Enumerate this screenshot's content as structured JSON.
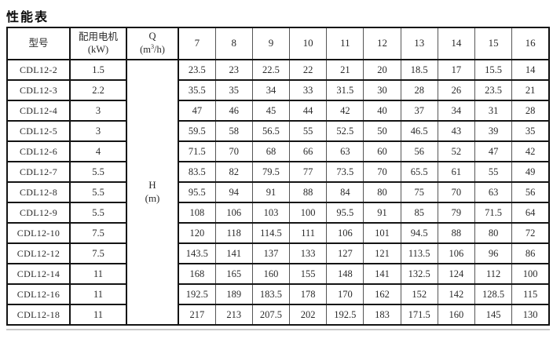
{
  "page": {
    "title": "性能表"
  },
  "table": {
    "header": {
      "model": "型号",
      "motor_line1": "配用电机",
      "motor_line2": "(kW)",
      "q_symbol": "Q",
      "q_unit_prefix": "(m",
      "q_unit_sup": "3",
      "q_unit_suffix": "/h)",
      "flow_columns": [
        "7",
        "8",
        "9",
        "10",
        "11",
        "12",
        "13",
        "14",
        "15",
        "16"
      ]
    },
    "h_cell_line1": "H",
    "h_cell_line2": "(m)",
    "rows": [
      {
        "model": "CDL12-2",
        "power": "1.5",
        "values": [
          "23.5",
          "23",
          "22.5",
          "22",
          "21",
          "20",
          "18.5",
          "17",
          "15.5",
          "14"
        ]
      },
      {
        "model": "CDL12-3",
        "power": "2.2",
        "values": [
          "35.5",
          "35",
          "34",
          "33",
          "31.5",
          "30",
          "28",
          "26",
          "23.5",
          "21"
        ]
      },
      {
        "model": "CDL12-4",
        "power": "3",
        "values": [
          "47",
          "46",
          "45",
          "44",
          "42",
          "40",
          "37",
          "34",
          "31",
          "28"
        ]
      },
      {
        "model": "CDL12-5",
        "power": "3",
        "values": [
          "59.5",
          "58",
          "56.5",
          "55",
          "52.5",
          "50",
          "46.5",
          "43",
          "39",
          "35"
        ]
      },
      {
        "model": "CDL12-6",
        "power": "4",
        "values": [
          "71.5",
          "70",
          "68",
          "66",
          "63",
          "60",
          "56",
          "52",
          "47",
          "42"
        ]
      },
      {
        "model": "CDL12-7",
        "power": "5.5",
        "values": [
          "83.5",
          "82",
          "79.5",
          "77",
          "73.5",
          "70",
          "65.5",
          "61",
          "55",
          "49"
        ]
      },
      {
        "model": "CDL12-8",
        "power": "5.5",
        "values": [
          "95.5",
          "94",
          "91",
          "88",
          "84",
          "80",
          "75",
          "70",
          "63",
          "56"
        ]
      },
      {
        "model": "CDL12-9",
        "power": "5.5",
        "values": [
          "108",
          "106",
          "103",
          "100",
          "95.5",
          "91",
          "85",
          "79",
          "71.5",
          "64"
        ]
      },
      {
        "model": "CDL12-10",
        "power": "7.5",
        "values": [
          "120",
          "118",
          "114.5",
          "111",
          "106",
          "101",
          "94.5",
          "88",
          "80",
          "72"
        ]
      },
      {
        "model": "CDL12-12",
        "power": "7.5",
        "values": [
          "143.5",
          "141",
          "137",
          "133",
          "127",
          "121",
          "113.5",
          "106",
          "96",
          "86"
        ]
      },
      {
        "model": "CDL12-14",
        "power": "11",
        "values": [
          "168",
          "165",
          "160",
          "155",
          "148",
          "141",
          "132.5",
          "124",
          "112",
          "100"
        ]
      },
      {
        "model": "CDL12-16",
        "power": "11",
        "values": [
          "192.5",
          "189",
          "183.5",
          "178",
          "170",
          "162",
          "152",
          "142",
          "128.5",
          "115"
        ]
      },
      {
        "model": "CDL12-18",
        "power": "11",
        "values": [
          "217",
          "213",
          "207.5",
          "202",
          "192.5",
          "183",
          "171.5",
          "160",
          "145",
          "130"
        ]
      }
    ]
  }
}
